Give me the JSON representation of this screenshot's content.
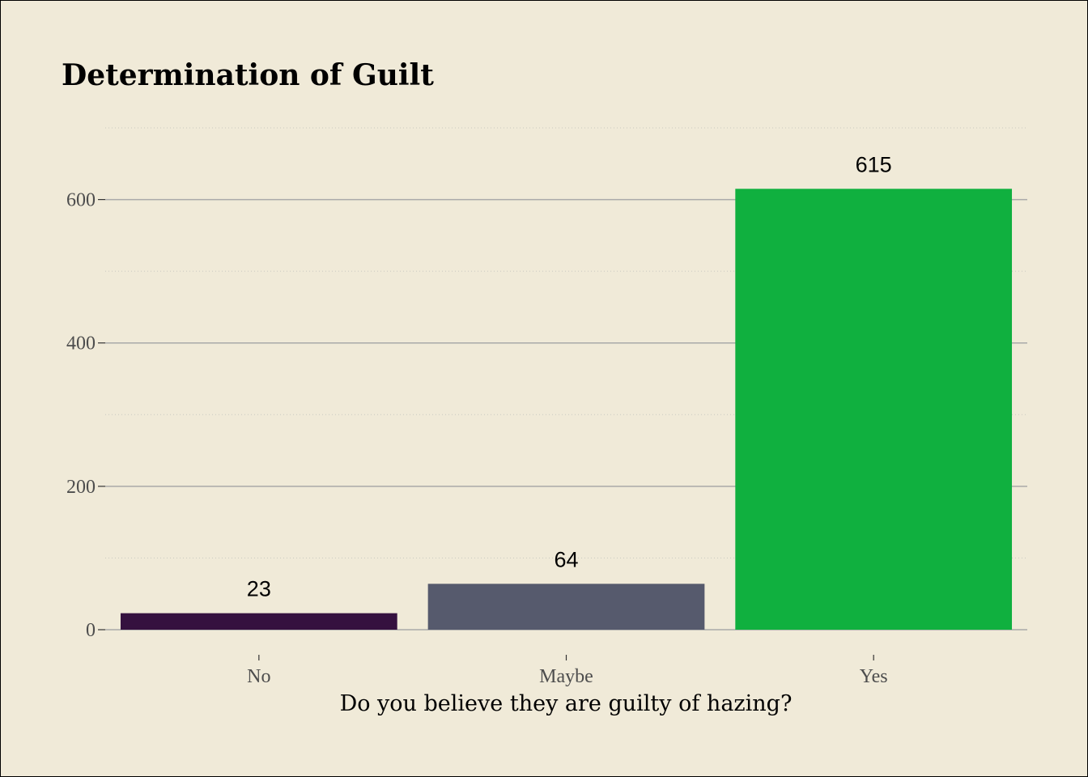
{
  "chart_data": {
    "type": "bar",
    "title": "Determination of Guilt",
    "xlabel": "Do you believe they are guilty of hazing?",
    "ylabel": "",
    "categories": [
      "No",
      "Maybe",
      "Yes"
    ],
    "values": [
      23,
      64,
      615
    ],
    "value_labels": [
      "23",
      "64",
      "615"
    ],
    "colors": [
      "#35113f",
      "#565a6d",
      "#10b03f"
    ],
    "ylim": [
      0,
      700
    ],
    "yticks": [
      0,
      200,
      400,
      600
    ],
    "ytick_labels": [
      "0",
      "200",
      "400",
      "600"
    ],
    "grid": true,
    "legend": "none"
  },
  "theme": {
    "background": "#f0ead8",
    "major_grid_color": "#a9a9a9",
    "minor_grid_color": "#c8c8c0"
  }
}
